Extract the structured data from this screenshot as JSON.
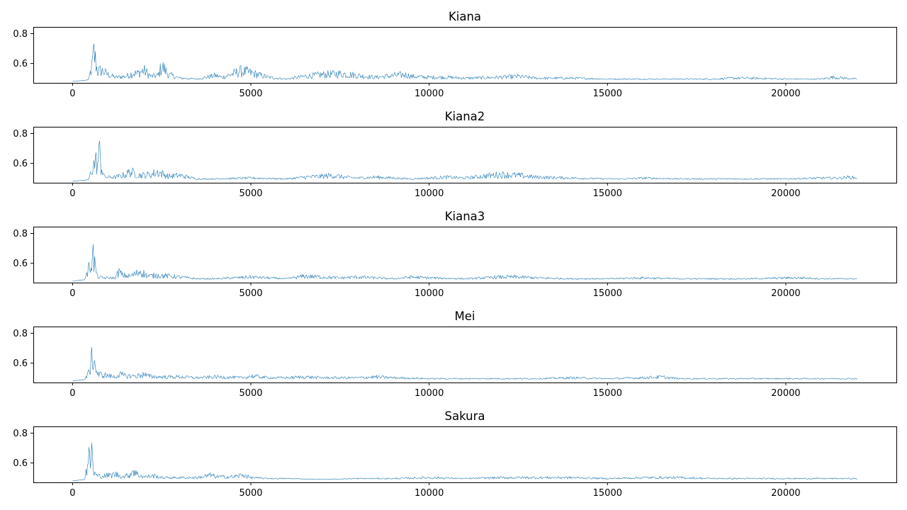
{
  "chart_data": [
    {
      "type": "line",
      "title": "Kiana",
      "xlabel": "",
      "ylabel": "",
      "xlim": [
        -1100,
        23100
      ],
      "ylim": [
        0.47,
        0.845
      ],
      "xticks": [
        0,
        5000,
        10000,
        15000,
        20000
      ],
      "yticks": [
        0.6,
        0.8
      ],
      "grid": false,
      "series": [
        {
          "color": "#1f77b4",
          "x": [
            0,
            450,
            550,
            600,
            620,
            650,
            700,
            800,
            1000,
            1200,
            1500,
            1700,
            1800,
            2000,
            2200,
            2400,
            2500,
            2600,
            2700,
            3000,
            3500,
            4000,
            4200,
            4500,
            4700,
            4900,
            5200,
            5500,
            6000,
            6500,
            7000,
            7500,
            7800,
            8200,
            8500,
            9000,
            9300,
            9500,
            10000,
            10500,
            11000,
            12000,
            12500,
            13000,
            14000,
            15000,
            16000,
            17000,
            18000,
            18500,
            19000,
            20000,
            21000,
            21300,
            22000
          ],
          "y": [
            0.48,
            0.49,
            0.65,
            0.8,
            0.76,
            0.7,
            0.58,
            0.6,
            0.55,
            0.52,
            0.53,
            0.57,
            0.56,
            0.6,
            0.53,
            0.54,
            0.65,
            0.6,
            0.55,
            0.51,
            0.5,
            0.54,
            0.52,
            0.56,
            0.59,
            0.58,
            0.55,
            0.52,
            0.5,
            0.53,
            0.55,
            0.56,
            0.55,
            0.53,
            0.52,
            0.54,
            0.55,
            0.53,
            0.52,
            0.52,
            0.51,
            0.52,
            0.53,
            0.51,
            0.51,
            0.5,
            0.5,
            0.5,
            0.5,
            0.51,
            0.51,
            0.5,
            0.5,
            0.52,
            0.5
          ]
        }
      ]
    },
    {
      "type": "line",
      "title": "Kiana2",
      "xlabel": "",
      "ylabel": "",
      "xlim": [
        -1100,
        23100
      ],
      "ylim": [
        0.47,
        0.845
      ],
      "xticks": [
        0,
        5000,
        10000,
        15000,
        20000
      ],
      "yticks": [
        0.6,
        0.8
      ],
      "grid": false,
      "series": [
        {
          "color": "#1f77b4",
          "x": [
            0,
            450,
            550,
            650,
            700,
            750,
            780,
            800,
            900,
            1200,
            1500,
            1600,
            1700,
            1900,
            2200,
            2400,
            2500,
            2700,
            3000,
            3500,
            4000,
            5000,
            6000,
            6500,
            7000,
            7300,
            7600,
            8000,
            8500,
            9000,
            9500,
            10000,
            10500,
            11000,
            11500,
            12000,
            12500,
            13000,
            14000,
            15000,
            15500,
            16000,
            17000,
            18000,
            19000,
            20000,
            21000,
            21500,
            21800,
            22000
          ],
          "y": [
            0.48,
            0.49,
            0.62,
            0.7,
            0.66,
            0.8,
            0.75,
            0.65,
            0.52,
            0.52,
            0.55,
            0.58,
            0.57,
            0.54,
            0.55,
            0.58,
            0.56,
            0.53,
            0.54,
            0.5,
            0.5,
            0.51,
            0.5,
            0.52,
            0.53,
            0.54,
            0.52,
            0.51,
            0.52,
            0.51,
            0.5,
            0.51,
            0.52,
            0.51,
            0.53,
            0.55,
            0.54,
            0.52,
            0.51,
            0.5,
            0.5,
            0.51,
            0.5,
            0.5,
            0.5,
            0.5,
            0.51,
            0.51,
            0.52,
            0.51
          ]
        }
      ]
    },
    {
      "type": "line",
      "title": "Kiana3",
      "xlabel": "",
      "ylabel": "",
      "xlim": [
        -1100,
        23100
      ],
      "ylim": [
        0.47,
        0.845
      ],
      "xticks": [
        0,
        5000,
        10000,
        15000,
        20000
      ],
      "yticks": [
        0.6,
        0.8
      ],
      "grid": false,
      "series": [
        {
          "color": "#1f77b4",
          "x": [
            0,
            350,
            450,
            500,
            550,
            570,
            600,
            700,
            900,
            1200,
            1300,
            1400,
            1600,
            1800,
            1900,
            2100,
            2400,
            2700,
            3000,
            3500,
            4000,
            5000,
            6000,
            6500,
            7000,
            7500,
            8000,
            8500,
            9000,
            9500,
            10000,
            11000,
            12000,
            12500,
            13000,
            14000,
            15000,
            16000,
            17000,
            18000,
            19000,
            20000,
            20500,
            21000,
            22000
          ],
          "y": [
            0.48,
            0.49,
            0.6,
            0.68,
            0.74,
            0.8,
            0.7,
            0.52,
            0.51,
            0.51,
            0.58,
            0.54,
            0.53,
            0.56,
            0.59,
            0.53,
            0.54,
            0.53,
            0.52,
            0.5,
            0.5,
            0.52,
            0.5,
            0.53,
            0.52,
            0.51,
            0.52,
            0.51,
            0.5,
            0.52,
            0.51,
            0.5,
            0.52,
            0.52,
            0.51,
            0.5,
            0.5,
            0.51,
            0.5,
            0.5,
            0.5,
            0.51,
            0.51,
            0.5,
            0.5
          ]
        }
      ]
    },
    {
      "type": "line",
      "title": "Mei",
      "xlabel": "",
      "ylabel": "",
      "xlim": [
        -1100,
        23100
      ],
      "ylim": [
        0.47,
        0.845
      ],
      "xticks": [
        0,
        5000,
        10000,
        15000,
        20000
      ],
      "yticks": [
        0.6,
        0.8
      ],
      "grid": false,
      "series": [
        {
          "color": "#1f77b4",
          "x": [
            0,
            350,
            450,
            500,
            550,
            580,
            620,
            700,
            900,
            1200,
            1300,
            1500,
            1800,
            2000,
            2100,
            2400,
            3000,
            3500,
            4000,
            4800,
            5000,
            5500,
            6000,
            6500,
            7000,
            8000,
            8500,
            9000,
            10000,
            11000,
            12000,
            13000,
            14000,
            15000,
            16000,
            16500,
            17000,
            18000,
            19000,
            20000,
            21000,
            22000
          ],
          "y": [
            0.48,
            0.49,
            0.56,
            0.65,
            0.72,
            0.8,
            0.68,
            0.55,
            0.54,
            0.52,
            0.55,
            0.53,
            0.53,
            0.55,
            0.53,
            0.52,
            0.52,
            0.51,
            0.52,
            0.51,
            0.53,
            0.51,
            0.51,
            0.52,
            0.51,
            0.51,
            0.52,
            0.51,
            0.5,
            0.5,
            0.5,
            0.5,
            0.51,
            0.5,
            0.51,
            0.52,
            0.5,
            0.5,
            0.5,
            0.5,
            0.5,
            0.5
          ]
        }
      ]
    },
    {
      "type": "line",
      "title": "Sakura",
      "xlabel": "",
      "ylabel": "",
      "xlim": [
        -1100,
        23100
      ],
      "ylim": [
        0.47,
        0.845
      ],
      "xticks": [
        0,
        5000,
        10000,
        15000,
        20000
      ],
      "yticks": [
        0.6,
        0.8
      ],
      "grid": false,
      "series": [
        {
          "color": "#1f77b4",
          "x": [
            0,
            350,
            420,
            450,
            500,
            530,
            560,
            600,
            700,
            900,
            1100,
            1200,
            1400,
            1600,
            1700,
            1800,
            2000,
            2300,
            2500,
            3000,
            3500,
            3900,
            4000,
            4200,
            4500,
            4800,
            5000,
            5500,
            6000,
            7000,
            8000,
            9000,
            10000,
            11000,
            12000,
            13000,
            14000,
            15000,
            16000,
            17000,
            18000,
            19000,
            20000,
            21000,
            22000
          ],
          "y": [
            0.48,
            0.49,
            0.65,
            0.72,
            0.7,
            0.8,
            0.74,
            0.56,
            0.53,
            0.53,
            0.54,
            0.55,
            0.52,
            0.54,
            0.6,
            0.55,
            0.52,
            0.53,
            0.51,
            0.51,
            0.51,
            0.54,
            0.52,
            0.52,
            0.52,
            0.54,
            0.51,
            0.5,
            0.5,
            0.49,
            0.5,
            0.5,
            0.51,
            0.5,
            0.51,
            0.51,
            0.51,
            0.5,
            0.51,
            0.51,
            0.5,
            0.5,
            0.5,
            0.5,
            0.5
          ]
        }
      ]
    }
  ]
}
